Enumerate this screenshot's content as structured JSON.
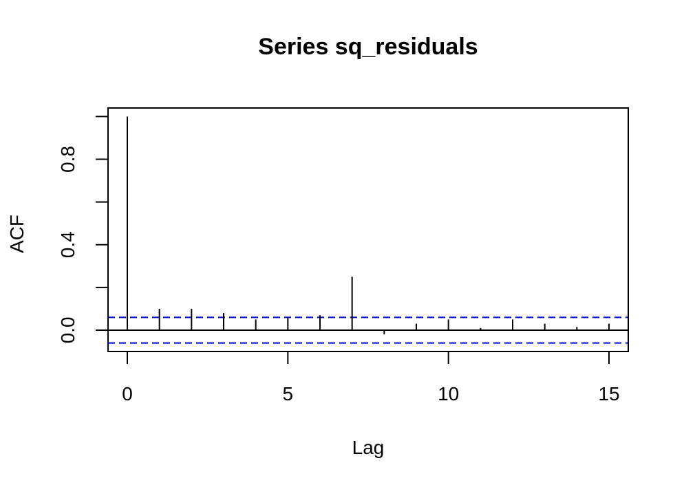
{
  "chart_data": {
    "type": "bar",
    "title": "Series  sq_residuals",
    "xlabel": "Lag",
    "ylabel": "ACF",
    "x": [
      0,
      1,
      2,
      3,
      4,
      5,
      6,
      7,
      8,
      9,
      10,
      11,
      12,
      13,
      14,
      15
    ],
    "values": [
      1.0,
      0.1,
      0.1,
      0.08,
      0.05,
      0.06,
      0.07,
      0.25,
      -0.02,
      0.03,
      0.05,
      0.01,
      0.05,
      0.03,
      0.015,
      0.03
    ],
    "xlim": [
      -0.6,
      15.6
    ],
    "ylim": [
      -0.1,
      1.04
    ],
    "x_ticks": [
      0,
      5,
      10,
      15
    ],
    "x_tick_labels": [
      "0",
      "5",
      "10",
      "15"
    ],
    "y_ticks": [
      0.0,
      0.2,
      0.4,
      0.6,
      0.8,
      1.0
    ],
    "y_tick_labels": [
      "0.0",
      "",
      "0.4",
      "",
      "0.8",
      ""
    ],
    "confidence_bounds": [
      0.06,
      -0.06
    ],
    "confidence_color": "#0000cc",
    "bar_color": "#000000",
    "grid": false,
    "legend": "none"
  }
}
